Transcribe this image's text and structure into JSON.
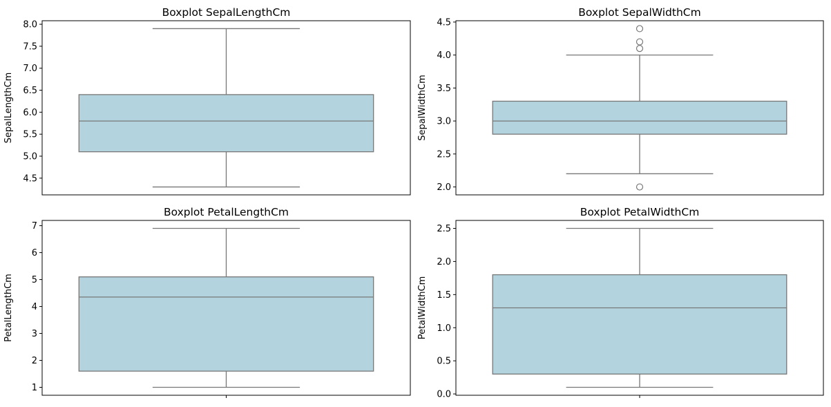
{
  "colors": {
    "box_fill": "#b3d4df",
    "line": "#777777",
    "axis": "#000000",
    "background": "#ffffff"
  },
  "chart_data": [
    {
      "type": "box",
      "title": "Boxplot SepalLengthCm",
      "xlabel": "",
      "ylabel": "SepalLengthCm",
      "ylim": [
        4.12,
        8.08
      ],
      "yticks": [
        4.5,
        5.0,
        5.5,
        6.0,
        6.5,
        7.0,
        7.5,
        8.0
      ],
      "ytick_labels": [
        "4.5",
        "5.0",
        "5.5",
        "6.0",
        "6.5",
        "7.0",
        "7.5",
        "8.0"
      ],
      "show_x_tick": false,
      "stats": {
        "whisker_low": 4.3,
        "q1": 5.1,
        "median": 5.8,
        "q3": 6.4,
        "whisker_high": 7.9
      },
      "outliers": []
    },
    {
      "type": "box",
      "title": "Boxplot SepalWidthCm",
      "xlabel": "",
      "ylabel": "SepalWidthCm",
      "ylim": [
        1.88,
        4.52
      ],
      "yticks": [
        2.0,
        2.5,
        3.0,
        3.5,
        4.0,
        4.5
      ],
      "ytick_labels": [
        "2.0",
        "2.5",
        "3.0",
        "3.5",
        "4.0",
        "4.5"
      ],
      "show_x_tick": false,
      "stats": {
        "whisker_low": 2.2,
        "q1": 2.8,
        "median": 3.0,
        "q3": 3.3,
        "whisker_high": 4.0
      },
      "outliers": [
        4.4,
        4.2,
        4.1,
        2.0
      ]
    },
    {
      "type": "box",
      "title": "Boxplot PetalLengthCm",
      "xlabel": "",
      "ylabel": "PetalLengthCm",
      "ylim": [
        0.705,
        7.195
      ],
      "yticks": [
        1,
        2,
        3,
        4,
        5,
        6,
        7
      ],
      "ytick_labels": [
        "1",
        "2",
        "3",
        "4",
        "5",
        "6",
        "7"
      ],
      "show_x_tick": true,
      "stats": {
        "whisker_low": 1.0,
        "q1": 1.6,
        "median": 4.35,
        "q3": 5.1,
        "whisker_high": 6.9
      },
      "outliers": []
    },
    {
      "type": "box",
      "title": "Boxplot PetalWidthCm",
      "xlabel": "",
      "ylabel": "PetalWidthCm",
      "ylim": [
        -0.02,
        2.62
      ],
      "yticks": [
        0.0,
        0.5,
        1.0,
        1.5,
        2.0,
        2.5
      ],
      "ytick_labels": [
        "0.0",
        "0.5",
        "1.0",
        "1.5",
        "2.0",
        "2.5"
      ],
      "show_x_tick": true,
      "stats": {
        "whisker_low": 0.1,
        "q1": 0.3,
        "median": 1.3,
        "q3": 1.8,
        "whisker_high": 2.5
      },
      "outliers": []
    }
  ]
}
